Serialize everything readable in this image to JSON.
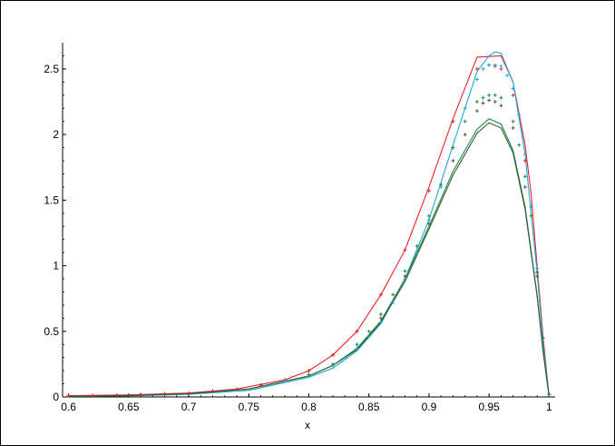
{
  "chart_data": {
    "type": "line",
    "title": "",
    "xlabel": "x",
    "ylabel": "",
    "xlim": [
      0.595,
      1.005
    ],
    "ylim": [
      0,
      2.7
    ],
    "grid": false,
    "legend": "none",
    "x_ticks": [
      "0.6",
      "0.65",
      "0.7",
      "0.75",
      "0.8",
      "0.85",
      "0.9",
      "0.95",
      "1"
    ],
    "x_tick_values": [
      0.6,
      0.65,
      0.7,
      0.75,
      0.8,
      0.85,
      0.9,
      0.95,
      1.0
    ],
    "y_ticks": [
      "0",
      "0.5",
      "1",
      "1.5",
      "2",
      "2.5"
    ],
    "y_tick_values": [
      0,
      0.5,
      1,
      1.5,
      2,
      2.5
    ],
    "curves": [
      {
        "color": "#e8232a",
        "style": "line",
        "x": [
          0.6,
          0.65,
          0.7,
          0.74,
          0.78,
          0.8,
          0.82,
          0.84,
          0.86,
          0.88,
          0.9,
          0.92,
          0.94,
          0.96,
          0.97,
          0.98,
          0.985,
          0.99,
          0.995,
          1.0
        ],
        "y": [
          0.01,
          0.015,
          0.03,
          0.06,
          0.13,
          0.2,
          0.32,
          0.5,
          0.78,
          1.12,
          1.6,
          2.12,
          2.59,
          2.6,
          2.4,
          1.92,
          1.55,
          1.0,
          0.45,
          0.0
        ]
      },
      {
        "color": "#22a7d8",
        "style": "line",
        "x": [
          0.6,
          0.65,
          0.7,
          0.75,
          0.8,
          0.82,
          0.84,
          0.86,
          0.88,
          0.9,
          0.92,
          0.94,
          0.95,
          0.955,
          0.96,
          0.97,
          0.98,
          0.99,
          0.995,
          1.0
        ],
        "y": [
          0.005,
          0.008,
          0.02,
          0.05,
          0.15,
          0.22,
          0.35,
          0.56,
          0.9,
          1.35,
          1.92,
          2.48,
          2.6,
          2.63,
          2.62,
          2.4,
          1.85,
          0.95,
          0.4,
          0.0
        ]
      },
      {
        "color": "#1e8a3a",
        "style": "line",
        "x": [
          0.6,
          0.65,
          0.7,
          0.75,
          0.8,
          0.82,
          0.84,
          0.86,
          0.88,
          0.9,
          0.92,
          0.94,
          0.95,
          0.96,
          0.97,
          0.98,
          0.99,
          0.995,
          1.0
        ],
        "y": [
          0.005,
          0.01,
          0.025,
          0.06,
          0.16,
          0.24,
          0.37,
          0.58,
          0.9,
          1.3,
          1.72,
          2.04,
          2.12,
          2.08,
          1.88,
          1.45,
          0.78,
          0.35,
          0.0
        ]
      },
      {
        "color": "#2f5c3a",
        "style": "line",
        "x": [
          0.6,
          0.65,
          0.7,
          0.75,
          0.8,
          0.82,
          0.84,
          0.86,
          0.88,
          0.9,
          0.92,
          0.94,
          0.95,
          0.96,
          0.97,
          0.98,
          0.99,
          0.995,
          1.0
        ],
        "y": [
          0.005,
          0.01,
          0.025,
          0.06,
          0.16,
          0.24,
          0.36,
          0.57,
          0.88,
          1.28,
          1.69,
          2.01,
          2.09,
          2.05,
          1.86,
          1.43,
          0.77,
          0.34,
          0.0
        ]
      },
      {
        "color": "#e8232a",
        "style": "markers",
        "x": [
          0.6,
          0.62,
          0.64,
          0.66,
          0.68,
          0.7,
          0.72,
          0.74,
          0.76,
          0.78,
          0.8,
          0.82,
          0.84,
          0.86,
          0.88,
          0.9,
          0.92,
          0.94,
          0.95,
          0.955,
          0.96,
          0.97,
          0.98,
          0.99,
          1.0
        ],
        "y": [
          0.01,
          0.012,
          0.015,
          0.02,
          0.025,
          0.03,
          0.045,
          0.06,
          0.09,
          0.13,
          0.2,
          0.32,
          0.5,
          0.78,
          1.12,
          1.57,
          2.1,
          2.5,
          2.53,
          2.52,
          2.5,
          2.3,
          1.8,
          0.95,
          0.02
        ]
      },
      {
        "color": "#22a7d8",
        "style": "markers",
        "x": [
          0.78,
          0.8,
          0.82,
          0.83,
          0.84,
          0.85,
          0.86,
          0.87,
          0.88,
          0.89,
          0.9,
          0.91,
          0.92,
          0.93,
          0.94,
          0.945,
          0.95,
          0.955,
          0.96,
          0.965,
          0.97,
          0.975,
          0.98,
          0.985,
          0.99,
          0.995,
          1.0
        ],
        "y": [
          0.12,
          0.16,
          0.24,
          0.3,
          0.37,
          0.46,
          0.57,
          0.72,
          0.9,
          1.1,
          1.35,
          1.6,
          1.9,
          2.2,
          2.42,
          2.5,
          2.53,
          2.53,
          2.52,
          2.45,
          2.35,
          2.15,
          1.85,
          1.45,
          0.98,
          0.45,
          0.02
        ]
      },
      {
        "color": "#1e8a3a",
        "style": "markers",
        "x": [
          0.8,
          0.82,
          0.84,
          0.85,
          0.86,
          0.87,
          0.88,
          0.89,
          0.9,
          0.91,
          0.92,
          0.93,
          0.94,
          0.945,
          0.95,
          0.955,
          0.96,
          0.97,
          0.975,
          0.98,
          0.985,
          0.99,
          0.995,
          1.0
        ],
        "y": [
          0.17,
          0.25,
          0.4,
          0.5,
          0.63,
          0.78,
          0.96,
          1.15,
          1.38,
          1.62,
          1.9,
          2.1,
          2.25,
          2.28,
          2.3,
          2.3,
          2.28,
          2.1,
          1.92,
          1.68,
          1.38,
          0.95,
          0.45,
          0.02
        ]
      },
      {
        "color": "#555555",
        "style": "markers",
        "x": [
          0.86,
          0.88,
          0.9,
          0.92,
          0.93,
          0.94,
          0.945,
          0.95,
          0.955,
          0.96,
          0.97,
          0.98,
          0.99
        ],
        "y": [
          0.6,
          0.92,
          1.32,
          1.8,
          2.0,
          2.18,
          2.24,
          2.26,
          2.25,
          2.22,
          2.05,
          1.6,
          0.92
        ]
      }
    ]
  }
}
